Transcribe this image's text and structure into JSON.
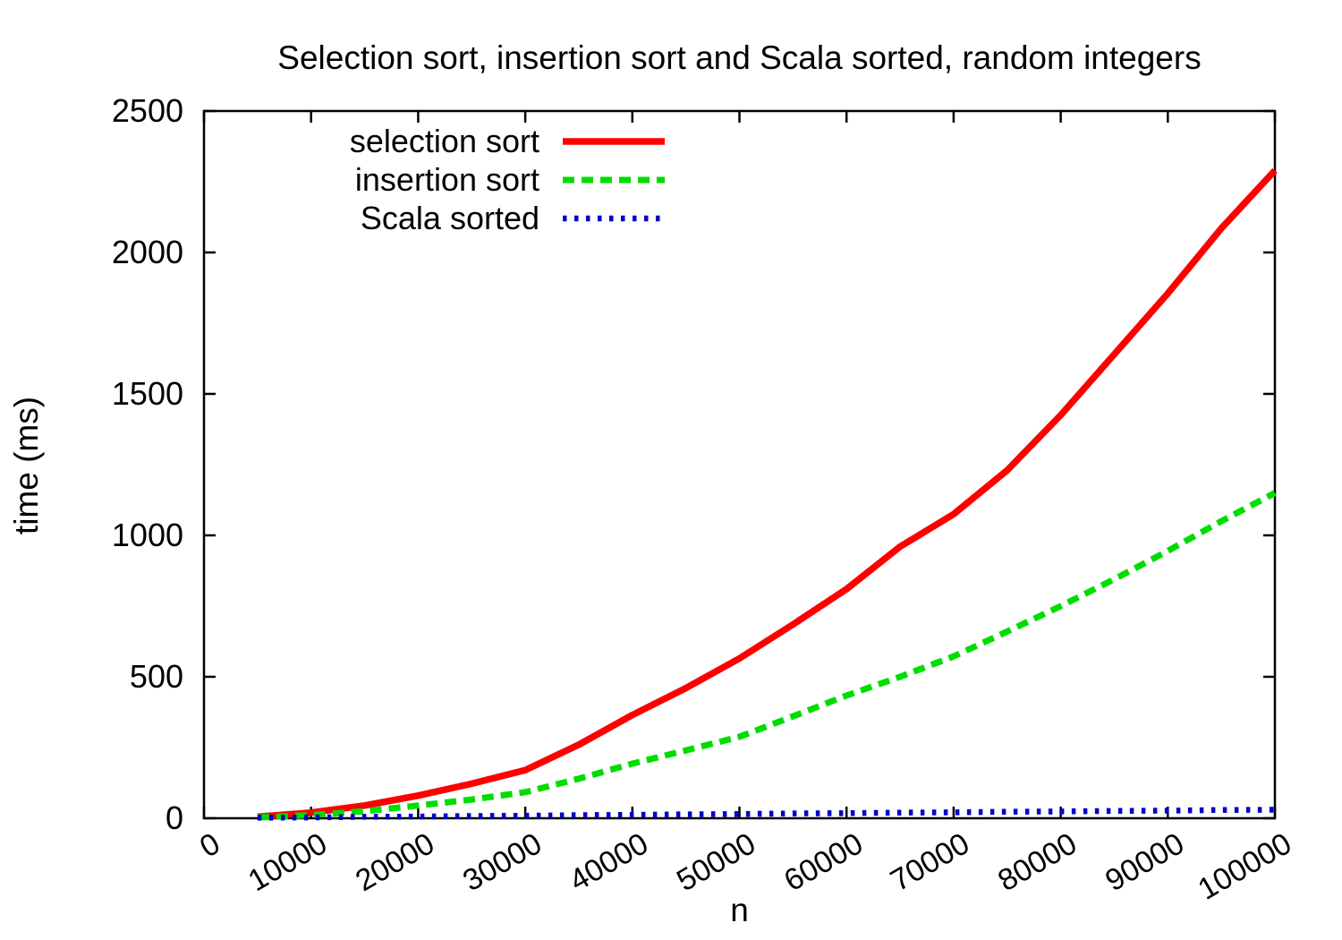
{
  "chart_data": {
    "type": "line",
    "title": "Selection sort, insertion sort and Scala sorted, random integers",
    "xlabel": "n",
    "ylabel": "time (ms)",
    "xlim": [
      0,
      100000
    ],
    "ylim": [
      0,
      2500
    ],
    "xticks": [
      0,
      10000,
      20000,
      30000,
      40000,
      50000,
      60000,
      70000,
      80000,
      90000,
      100000
    ],
    "yticks": [
      0,
      500,
      1000,
      1500,
      2000,
      2500
    ],
    "grid": false,
    "legend_position": "top-left-inside",
    "x": [
      5000,
      10000,
      15000,
      20000,
      25000,
      30000,
      35000,
      40000,
      45000,
      50000,
      55000,
      60000,
      65000,
      70000,
      75000,
      80000,
      85000,
      90000,
      95000,
      100000
    ],
    "series": [
      {
        "name": "selection sort",
        "color": "#ff0000",
        "style": "solid",
        "values": [
          5,
          20,
          45,
          80,
          122,
          170,
          260,
          365,
          460,
          565,
          685,
          810,
          960,
          1075,
          1230,
          1425,
          1640,
          1855,
          2085,
          2290
        ]
      },
      {
        "name": "insertion sort",
        "color": "#00dd00",
        "style": "dashed",
        "values": [
          3,
          11,
          25,
          45,
          66,
          92,
          140,
          193,
          240,
          288,
          360,
          434,
          500,
          572,
          660,
          750,
          845,
          945,
          1050,
          1150
        ]
      },
      {
        "name": "Scala sorted",
        "color": "#0000cc",
        "style": "dotted",
        "values": [
          2,
          3,
          5,
          6,
          8,
          9,
          11,
          12,
          14,
          15,
          17,
          18,
          20,
          21,
          23,
          24,
          26,
          27,
          29,
          30
        ]
      }
    ]
  }
}
